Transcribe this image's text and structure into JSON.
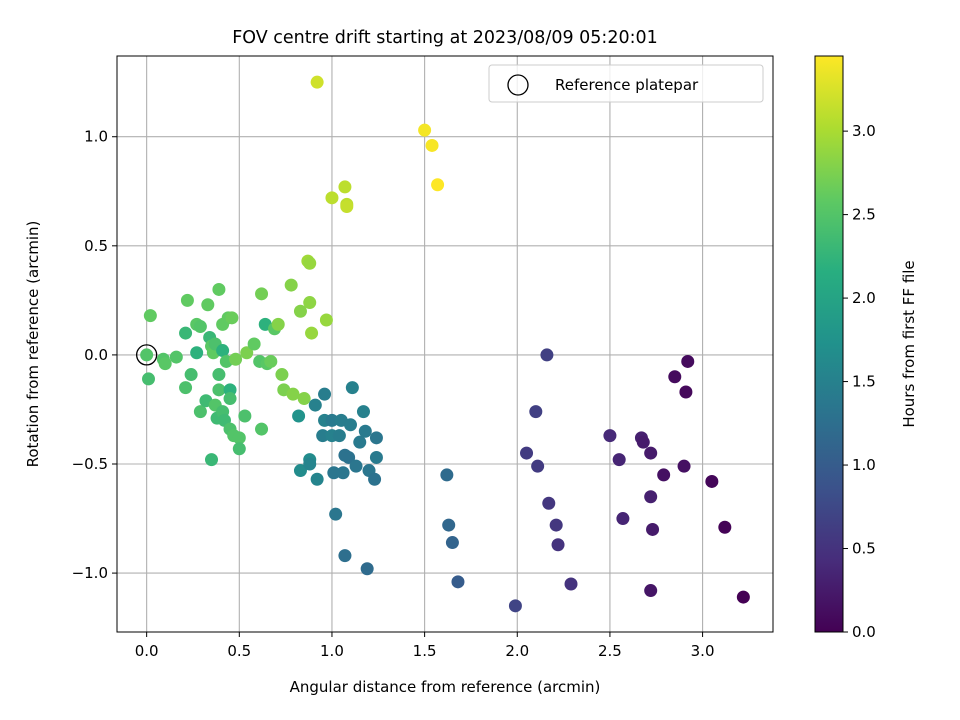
{
  "chart_data": {
    "type": "scatter",
    "title": "FOV centre drift starting at 2023/08/09 05:20:01",
    "xlabel": "Angular distance from reference (arcmin)",
    "ylabel": "Rotation from reference (arcmin)",
    "xlim": [
      -0.16,
      3.38
    ],
    "ylim": [
      -1.27,
      1.37
    ],
    "xticks": [
      0.0,
      0.5,
      1.0,
      1.5,
      2.0,
      2.5,
      3.0
    ],
    "xtick_labels": [
      "0.0",
      "0.5",
      "1.0",
      "1.5",
      "2.0",
      "2.5",
      "3.0"
    ],
    "yticks": [
      -1.0,
      -0.5,
      0.0,
      0.5,
      1.0
    ],
    "ytick_labels": [
      "−1.0",
      "−0.5",
      "0.0",
      "0.5",
      "1.0"
    ],
    "grid": true,
    "colormap": "viridis",
    "colorbar": {
      "label": "Hours from first FF file",
      "range": [
        0.0,
        3.45
      ],
      "ticks": [
        0.0,
        0.5,
        1.0,
        1.5,
        2.0,
        2.5,
        3.0
      ],
      "tick_labels": [
        "0.0",
        "0.5",
        "1.0",
        "1.5",
        "2.0",
        "2.5",
        "3.0"
      ]
    },
    "legend": {
      "placement": "upper right",
      "entries": [
        "Reference platepar"
      ]
    },
    "reference_point": {
      "x": 0.0,
      "y": 0.0,
      "label": "Reference platepar"
    },
    "points": [
      {
        "x": 0.0,
        "y": 0.0,
        "hours": 2.5
      },
      {
        "x": 0.02,
        "y": 0.18,
        "hours": 2.6
      },
      {
        "x": 0.01,
        "y": -0.11,
        "hours": 2.4
      },
      {
        "x": 0.09,
        "y": -0.02,
        "hours": 2.5
      },
      {
        "x": 0.1,
        "y": -0.04,
        "hours": 2.55
      },
      {
        "x": 0.16,
        "y": -0.01,
        "hours": 2.5
      },
      {
        "x": 0.21,
        "y": 0.1,
        "hours": 2.3
      },
      {
        "x": 0.22,
        "y": 0.25,
        "hours": 2.6
      },
      {
        "x": 0.21,
        "y": -0.15,
        "hours": 2.45
      },
      {
        "x": 0.24,
        "y": -0.09,
        "hours": 2.4
      },
      {
        "x": 0.27,
        "y": 0.14,
        "hours": 2.55
      },
      {
        "x": 0.27,
        "y": 0.01,
        "hours": 2.2
      },
      {
        "x": 0.29,
        "y": 0.13,
        "hours": 2.5
      },
      {
        "x": 0.29,
        "y": -0.26,
        "hours": 2.45
      },
      {
        "x": 0.33,
        "y": 0.23,
        "hours": 2.6
      },
      {
        "x": 0.32,
        "y": -0.21,
        "hours": 2.35
      },
      {
        "x": 0.34,
        "y": 0.08,
        "hours": 2.3
      },
      {
        "x": 0.35,
        "y": 0.04,
        "hours": 2.55
      },
      {
        "x": 0.36,
        "y": 0.01,
        "hours": 2.6
      },
      {
        "x": 0.37,
        "y": 0.05,
        "hours": 2.45
      },
      {
        "x": 0.35,
        "y": -0.48,
        "hours": 2.3
      },
      {
        "x": 0.37,
        "y": -0.23,
        "hours": 2.5
      },
      {
        "x": 0.38,
        "y": -0.29,
        "hours": 2.35
      },
      {
        "x": 0.39,
        "y": 0.3,
        "hours": 2.6
      },
      {
        "x": 0.39,
        "y": -0.09,
        "hours": 2.4
      },
      {
        "x": 0.39,
        "y": -0.16,
        "hours": 2.45
      },
      {
        "x": 0.41,
        "y": 0.02,
        "hours": 2.2
      },
      {
        "x": 0.41,
        "y": -0.26,
        "hours": 2.4
      },
      {
        "x": 0.41,
        "y": 0.14,
        "hours": 2.6
      },
      {
        "x": 0.42,
        "y": -0.3,
        "hours": 2.35
      },
      {
        "x": 0.43,
        "y": -0.03,
        "hours": 2.5
      },
      {
        "x": 0.44,
        "y": 0.17,
        "hours": 2.6
      },
      {
        "x": 0.45,
        "y": -0.16,
        "hours": 2.2
      },
      {
        "x": 0.45,
        "y": -0.2,
        "hours": 2.4
      },
      {
        "x": 0.45,
        "y": -0.34,
        "hours": 2.45
      },
      {
        "x": 0.46,
        "y": 0.17,
        "hours": 2.65
      },
      {
        "x": 0.47,
        "y": -0.37,
        "hours": 2.5
      },
      {
        "x": 0.48,
        "y": -0.02,
        "hours": 2.7
      },
      {
        "x": 0.5,
        "y": -0.38,
        "hours": 2.5
      },
      {
        "x": 0.5,
        "y": -0.43,
        "hours": 2.4
      },
      {
        "x": 0.53,
        "y": -0.28,
        "hours": 2.45
      },
      {
        "x": 0.54,
        "y": 0.01,
        "hours": 2.75
      },
      {
        "x": 0.58,
        "y": 0.05,
        "hours": 2.6
      },
      {
        "x": 0.61,
        "y": -0.03,
        "hours": 2.5
      },
      {
        "x": 0.62,
        "y": 0.28,
        "hours": 2.7
      },
      {
        "x": 0.62,
        "y": -0.34,
        "hours": 2.5
      },
      {
        "x": 0.64,
        "y": 0.14,
        "hours": 2.2
      },
      {
        "x": 0.65,
        "y": -0.04,
        "hours": 2.55
      },
      {
        "x": 0.67,
        "y": -0.03,
        "hours": 2.65
      },
      {
        "x": 0.69,
        "y": 0.12,
        "hours": 2.55
      },
      {
        "x": 0.71,
        "y": 0.14,
        "hours": 2.8
      },
      {
        "x": 0.73,
        "y": -0.09,
        "hours": 2.75
      },
      {
        "x": 0.74,
        "y": -0.16,
        "hours": 2.75
      },
      {
        "x": 0.78,
        "y": 0.32,
        "hours": 2.8
      },
      {
        "x": 0.79,
        "y": -0.18,
        "hours": 2.8
      },
      {
        "x": 0.82,
        "y": -0.28,
        "hours": 1.75
      },
      {
        "x": 0.83,
        "y": -0.53,
        "hours": 1.65
      },
      {
        "x": 0.83,
        "y": 0.2,
        "hours": 2.8
      },
      {
        "x": 0.85,
        "y": -0.2,
        "hours": 2.8
      },
      {
        "x": 0.87,
        "y": 0.43,
        "hours": 2.95
      },
      {
        "x": 0.88,
        "y": 0.42,
        "hours": 2.9
      },
      {
        "x": 0.88,
        "y": 0.24,
        "hours": 2.85
      },
      {
        "x": 0.88,
        "y": -0.48,
        "hours": 1.65
      },
      {
        "x": 0.88,
        "y": -0.5,
        "hours": 1.55
      },
      {
        "x": 0.89,
        "y": 0.1,
        "hours": 2.9
      },
      {
        "x": 0.91,
        "y": -0.23,
        "hours": 1.5
      },
      {
        "x": 0.92,
        "y": -0.57,
        "hours": 1.55
      },
      {
        "x": 0.92,
        "y": 1.25,
        "hours": 3.2
      },
      {
        "x": 0.95,
        "y": -0.37,
        "hours": 1.45
      },
      {
        "x": 0.96,
        "y": -0.3,
        "hours": 1.5
      },
      {
        "x": 0.96,
        "y": -0.18,
        "hours": 1.45
      },
      {
        "x": 0.97,
        "y": 0.16,
        "hours": 2.9
      },
      {
        "x": 1.0,
        "y": 0.72,
        "hours": 3.1
      },
      {
        "x": 1.0,
        "y": -0.3,
        "hours": 1.4
      },
      {
        "x": 1.0,
        "y": -0.37,
        "hours": 1.5
      },
      {
        "x": 1.01,
        "y": -0.54,
        "hours": 1.35
      },
      {
        "x": 1.02,
        "y": -0.73,
        "hours": 1.35
      },
      {
        "x": 1.04,
        "y": -0.37,
        "hours": 1.45
      },
      {
        "x": 1.05,
        "y": -0.3,
        "hours": 1.45
      },
      {
        "x": 1.06,
        "y": -0.54,
        "hours": 1.35
      },
      {
        "x": 1.07,
        "y": 0.77,
        "hours": 3.1
      },
      {
        "x": 1.07,
        "y": -0.46,
        "hours": 1.3
      },
      {
        "x": 1.07,
        "y": -0.92,
        "hours": 1.25
      },
      {
        "x": 1.08,
        "y": 0.69,
        "hours": 3.1
      },
      {
        "x": 1.08,
        "y": 0.68,
        "hours": 3.15
      },
      {
        "x": 1.09,
        "y": -0.47,
        "hours": 1.3
      },
      {
        "x": 1.1,
        "y": -0.32,
        "hours": 1.45
      },
      {
        "x": 1.11,
        "y": -0.15,
        "hours": 1.5
      },
      {
        "x": 1.13,
        "y": -0.51,
        "hours": 1.35
      },
      {
        "x": 1.15,
        "y": -0.4,
        "hours": 1.4
      },
      {
        "x": 1.17,
        "y": -0.26,
        "hours": 1.5
      },
      {
        "x": 1.18,
        "y": -0.35,
        "hours": 1.4
      },
      {
        "x": 1.19,
        "y": -0.98,
        "hours": 1.2
      },
      {
        "x": 1.2,
        "y": -0.53,
        "hours": 1.35
      },
      {
        "x": 1.23,
        "y": -0.57,
        "hours": 1.3
      },
      {
        "x": 1.24,
        "y": -0.38,
        "hours": 1.35
      },
      {
        "x": 1.24,
        "y": -0.47,
        "hours": 1.4
      },
      {
        "x": 1.5,
        "y": 1.03,
        "hours": 3.4
      },
      {
        "x": 1.54,
        "y": 0.96,
        "hours": 3.42
      },
      {
        "x": 1.57,
        "y": 0.78,
        "hours": 3.45
      },
      {
        "x": 1.62,
        "y": -0.55,
        "hours": 1.2
      },
      {
        "x": 1.63,
        "y": -0.78,
        "hours": 1.15
      },
      {
        "x": 1.65,
        "y": -0.86,
        "hours": 1.1
      },
      {
        "x": 1.68,
        "y": -1.04,
        "hours": 1.0
      },
      {
        "x": 1.99,
        "y": -1.15,
        "hours": 0.7
      },
      {
        "x": 2.05,
        "y": -0.45,
        "hours": 0.6
      },
      {
        "x": 2.1,
        "y": -0.26,
        "hours": 0.65
      },
      {
        "x": 2.11,
        "y": -0.51,
        "hours": 0.6
      },
      {
        "x": 2.16,
        "y": 0.0,
        "hours": 0.65
      },
      {
        "x": 2.17,
        "y": -0.68,
        "hours": 0.55
      },
      {
        "x": 2.21,
        "y": -0.78,
        "hours": 0.55
      },
      {
        "x": 2.22,
        "y": -0.87,
        "hours": 0.5
      },
      {
        "x": 2.29,
        "y": -1.05,
        "hours": 0.5
      },
      {
        "x": 2.5,
        "y": -0.37,
        "hours": 0.4
      },
      {
        "x": 2.55,
        "y": -0.48,
        "hours": 0.35
      },
      {
        "x": 2.57,
        "y": -0.75,
        "hours": 0.35
      },
      {
        "x": 2.67,
        "y": -0.38,
        "hours": 0.3
      },
      {
        "x": 2.68,
        "y": -0.4,
        "hours": 0.25
      },
      {
        "x": 2.72,
        "y": -0.65,
        "hours": 0.3
      },
      {
        "x": 2.72,
        "y": -0.45,
        "hours": 0.25
      },
      {
        "x": 2.72,
        "y": -1.08,
        "hours": 0.2
      },
      {
        "x": 2.73,
        "y": -0.8,
        "hours": 0.25
      },
      {
        "x": 2.79,
        "y": -0.55,
        "hours": 0.15
      },
      {
        "x": 2.85,
        "y": -0.1,
        "hours": 0.1
      },
      {
        "x": 2.9,
        "y": -0.51,
        "hours": 0.15
      },
      {
        "x": 2.91,
        "y": -0.17,
        "hours": 0.08
      },
      {
        "x": 2.92,
        "y": -0.03,
        "hours": 0.1
      },
      {
        "x": 3.05,
        "y": -0.58,
        "hours": 0.05
      },
      {
        "x": 3.12,
        "y": -0.79,
        "hours": 0.02
      },
      {
        "x": 3.22,
        "y": -1.11,
        "hours": 0.0
      }
    ]
  }
}
